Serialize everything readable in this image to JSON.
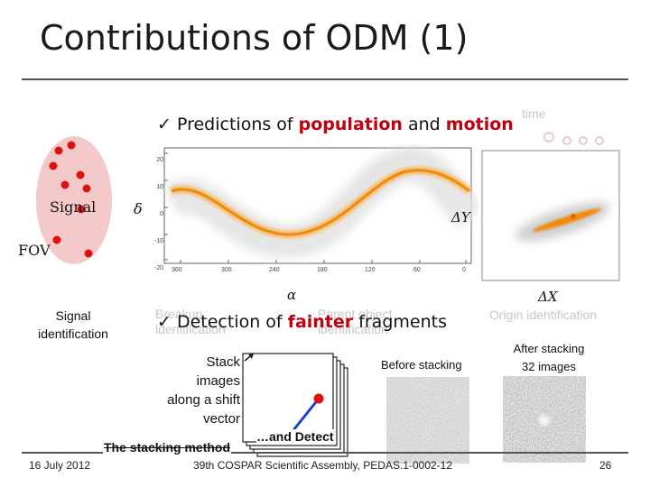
{
  "slide": {
    "title": "Contributions of ODM (1)",
    "bullet1": {
      "check": "✓",
      "pre": "Predictions of ",
      "w1": "population",
      "mid": " and ",
      "w2": "motion"
    },
    "bullet2": {
      "check": "✓",
      "pre": "Detection of ",
      "w1": "fainter",
      "post": " fragments"
    },
    "signal_label": "Signal",
    "fov_label": "FOV",
    "signal_identification": [
      "Signal",
      "identification"
    ],
    "delta_label": "δ",
    "alpha_label": "α",
    "dY_label": "ΔY",
    "dX_label": "ΔX",
    "ghost_origin": "Origin identification",
    "ghost_time": "time",
    "ghost_breakup": [
      "Breakup",
      "identification"
    ],
    "ghost_parent": [
      "Parent object",
      "identification"
    ],
    "stack_text": [
      "Stack",
      "images",
      "along a shift",
      "vector"
    ],
    "before_stacking": "Before stacking",
    "after_stacking": [
      "After stacking",
      "32 images"
    ],
    "and_detect": "…and Detect",
    "stacking_method": "The stacking method",
    "date": "16 July 2012",
    "conference": "39th COSPAR Scientific Assembly, PEDAS.1-0002-12",
    "page_number": "26"
  },
  "plot": {
    "y_ticks": [
      "20",
      "10",
      "0",
      "-10",
      "-20"
    ],
    "x_ticks": [
      "360",
      "300",
      "240",
      "180",
      "120",
      "60",
      "0"
    ]
  },
  "colors": {
    "accent": "#c0000f",
    "orbit": "#f39a1a",
    "fov": "#f4c9c9"
  }
}
